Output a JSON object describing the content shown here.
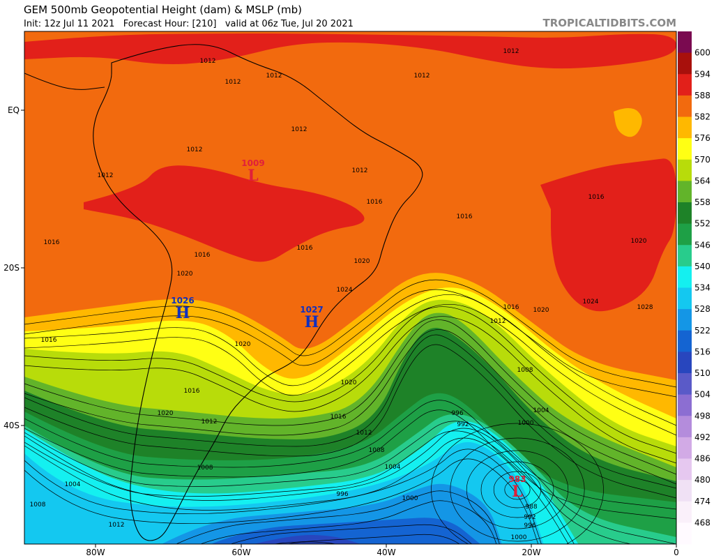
{
  "header": {
    "title": "GEM 500mb Geopotential Height (dam) & MSLP (mb)",
    "subtitle": "Init: 12z Jul 11 2021   Forecast Hour: [210]   valid at 06z Tue, Jul 20 2021",
    "brand": "TROPICALTIDBITS.COM"
  },
  "colorbar": {
    "levels": [
      600,
      594,
      588,
      582,
      576,
      570,
      564,
      558,
      552,
      546,
      540,
      534,
      528,
      522,
      516,
      510,
      504,
      498,
      492,
      486,
      480,
      474,
      468
    ],
    "colors": [
      "#7a0a50",
      "#a8100c",
      "#e2201a",
      "#f26a0e",
      "#ffb800",
      "#ffff14",
      "#b8dc0a",
      "#62b42a",
      "#1e8228",
      "#1ea046",
      "#28cc8c",
      "#14f0f0",
      "#14c8f0",
      "#1496e6",
      "#1464d2",
      "#2846be",
      "#5a5ac8",
      "#8c6ed2",
      "#b48cdc",
      "#d2aae6",
      "#e6c8f0",
      "#f0e1f5",
      "#faf0fa",
      "#fffaff"
    ]
  },
  "axes": {
    "lat_labels": [
      "EQ",
      "20S",
      "40S"
    ],
    "lon_labels": [
      "80W",
      "60W",
      "40W",
      "20W",
      "0"
    ]
  },
  "pressure_centers": [
    {
      "letter": "H",
      "value": 1026
    },
    {
      "letter": "H",
      "value": 1027
    },
    {
      "letter": "L",
      "value": 1009
    },
    {
      "letter": "L",
      "value": 983
    }
  ],
  "isobar_labels": [
    1012,
    1012,
    1012,
    1012,
    1012,
    1012,
    1012,
    1012,
    1012,
    1016,
    1016,
    1016,
    1016,
    1016,
    1016,
    1020,
    1020,
    1020,
    1024,
    1024,
    1028,
    1016,
    1020,
    1012,
    1020,
    1016,
    1008,
    1016,
    1020,
    1016,
    1004,
    1020,
    1012,
    1012,
    992,
    996,
    1000,
    1008,
    1004,
    1008,
    1004,
    996,
    1000,
    1008,
    988,
    992,
    996,
    1012,
    1000
  ]
}
